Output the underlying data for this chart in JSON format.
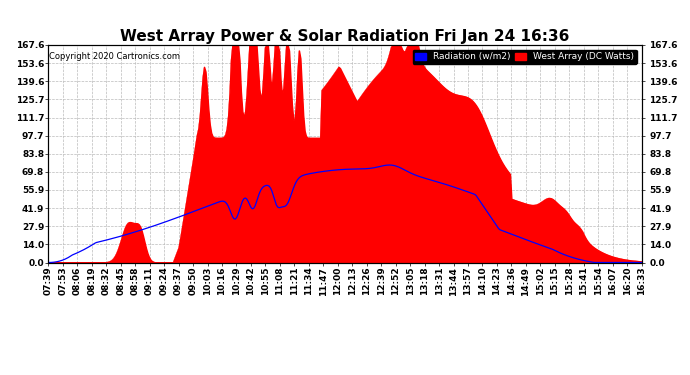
{
  "title": "West Array Power & Solar Radiation Fri Jan 24 16:36",
  "copyright": "Copyright 2020 Cartronics.com",
  "yticks": [
    0.0,
    14.0,
    27.9,
    41.9,
    55.9,
    69.8,
    83.8,
    97.7,
    111.7,
    125.7,
    139.6,
    153.6,
    167.6
  ],
  "ymax": 167.6,
  "legend_radiation": "Radiation (w/m2)",
  "legend_west": "West Array (DC Watts)",
  "bg_color": "#ffffff",
  "grid_color": "#bbbbbb",
  "fill_color": "#ff0000",
  "line_color": "#0000ff",
  "title_fontsize": 11,
  "tick_fontsize": 6.5,
  "xtick_labels": [
    "07:39",
    "07:53",
    "08:06",
    "08:19",
    "08:32",
    "08:45",
    "08:58",
    "09:11",
    "09:24",
    "09:37",
    "09:50",
    "10:03",
    "10:16",
    "10:29",
    "10:42",
    "10:55",
    "11:08",
    "11:21",
    "11:34",
    "11:47",
    "12:00",
    "12:13",
    "12:26",
    "12:39",
    "12:52",
    "13:05",
    "13:18",
    "13:31",
    "13:44",
    "13:57",
    "14:10",
    "14:23",
    "14:36",
    "14:49",
    "15:02",
    "15:15",
    "15:28",
    "15:41",
    "15:54",
    "16:07",
    "16:20",
    "16:33"
  ]
}
